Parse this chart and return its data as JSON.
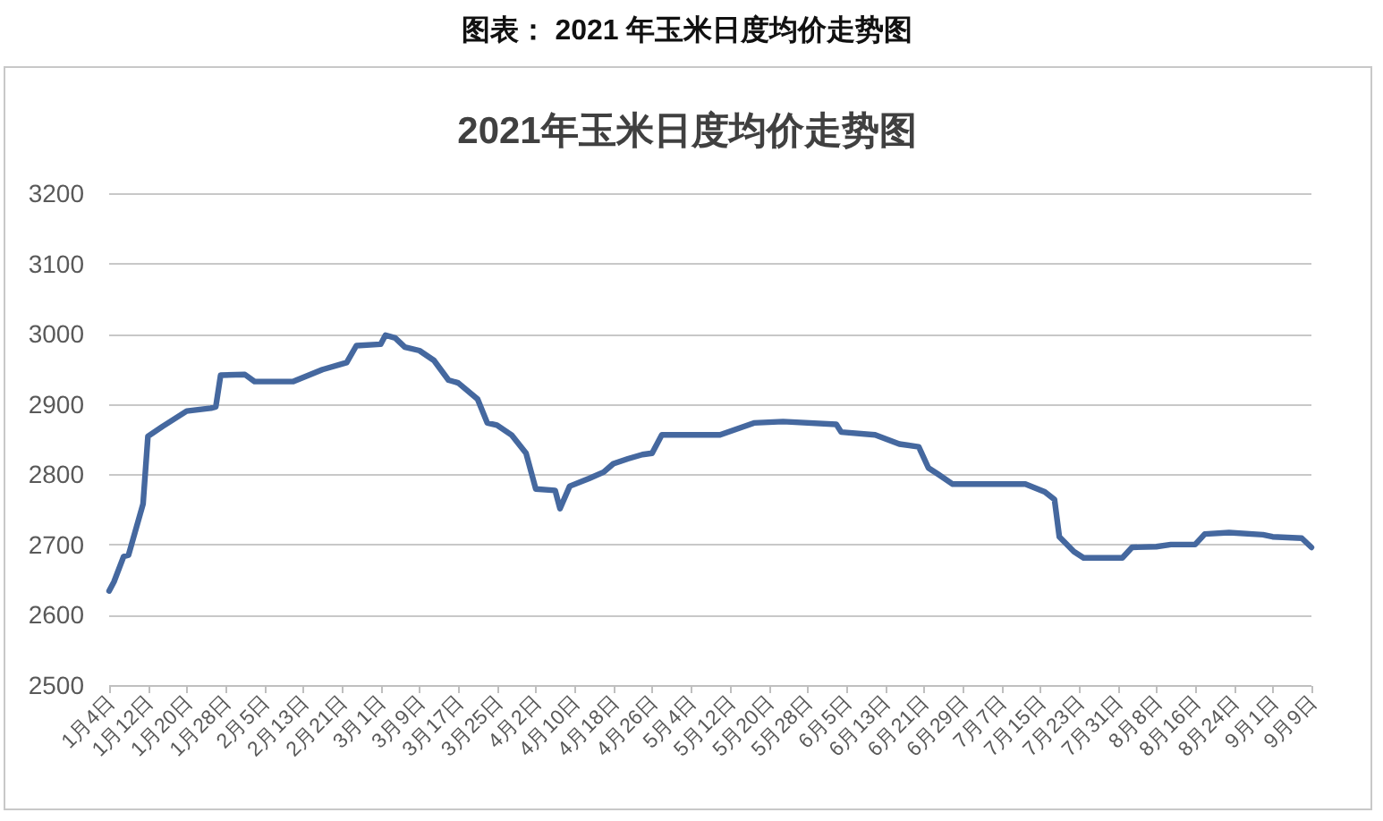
{
  "chart_data": {
    "type": "line",
    "title": "2021年玉米日度均价走势图",
    "annotations": [
      "图表： 2021 年玉米日度均价走势图"
    ],
    "x": [
      "2021-01-04",
      "2021-01-05",
      "2021-01-07",
      "2021-01-08",
      "2021-01-11",
      "2021-01-12",
      "2021-01-15",
      "2021-01-20",
      "2021-01-25",
      "2021-01-26",
      "2021-01-27",
      "2021-02-01",
      "2021-02-03",
      "2021-02-11",
      "2021-02-17",
      "2021-02-22",
      "2021-02-24",
      "2021-03-01",
      "2021-03-02",
      "2021-03-04",
      "2021-03-06",
      "2021-03-09",
      "2021-03-12",
      "2021-03-15",
      "2021-03-17",
      "2021-03-21",
      "2021-03-23",
      "2021-03-25",
      "2021-03-28",
      "2021-03-31",
      "2021-04-02",
      "2021-04-06",
      "2021-04-07",
      "2021-04-09",
      "2021-04-13",
      "2021-04-16",
      "2021-04-18",
      "2021-04-21",
      "2021-04-24",
      "2021-04-26",
      "2021-04-28",
      "2021-05-10",
      "2021-05-17",
      "2021-05-23",
      "2021-06-03",
      "2021-06-04",
      "2021-06-11",
      "2021-06-16",
      "2021-06-20",
      "2021-06-22",
      "2021-06-24",
      "2021-06-27",
      "2021-07-12",
      "2021-07-16",
      "2021-07-18",
      "2021-07-19",
      "2021-07-22",
      "2021-07-24",
      "2021-08-01",
      "2021-08-03",
      "2021-08-08",
      "2021-08-11",
      "2021-08-16",
      "2021-08-18",
      "2021-08-23",
      "2021-08-30",
      "2021-09-01",
      "2021-09-07",
      "2021-09-09"
    ],
    "series": [
      {
        "color": "#45689f",
        "values": [
          2634,
          2647,
          2683,
          2685,
          2758,
          2854,
          2868,
          2890,
          2894,
          2896,
          2941,
          2942,
          2932,
          2932,
          2949,
          2959,
          2983,
          2985,
          2998,
          2994,
          2981,
          2976,
          2962,
          2934,
          2930,
          2907,
          2873,
          2870,
          2856,
          2830,
          2779,
          2777,
          2751,
          2783,
          2794,
          2803,
          2815,
          2822,
          2828,
          2830,
          2856,
          2856,
          2873,
          2875,
          2871,
          2860,
          2856,
          2843,
          2839,
          2809,
          2800,
          2786,
          2786,
          2775,
          2764,
          2711,
          2690,
          2681,
          2681,
          2696,
          2697,
          2700,
          2700,
          2715,
          2717,
          2714,
          2711,
          2709,
          2696
        ]
      }
    ],
    "xlim": [
      "2021-01-04",
      "2021-09-09"
    ],
    "xticks": [
      {
        "value": "2021-01-04",
        "label": "1月4日"
      },
      {
        "value": "2021-01-12",
        "label": "1月12日"
      },
      {
        "value": "2021-01-20",
        "label": "1月20日"
      },
      {
        "value": "2021-01-28",
        "label": "1月28日"
      },
      {
        "value": "2021-02-05",
        "label": "2月5日"
      },
      {
        "value": "2021-02-13",
        "label": "2月13日"
      },
      {
        "value": "2021-02-21",
        "label": "2月21日"
      },
      {
        "value": "2021-03-01",
        "label": "3月1日"
      },
      {
        "value": "2021-03-09",
        "label": "3月9日"
      },
      {
        "value": "2021-03-17",
        "label": "3月17日"
      },
      {
        "value": "2021-03-25",
        "label": "3月25日"
      },
      {
        "value": "2021-04-02",
        "label": "4月2日"
      },
      {
        "value": "2021-04-10",
        "label": "4月10日"
      },
      {
        "value": "2021-04-18",
        "label": "4月18日"
      },
      {
        "value": "2021-04-26",
        "label": "4月26日"
      },
      {
        "value": "2021-05-04",
        "label": "5月4日"
      },
      {
        "value": "2021-05-12",
        "label": "5月12日"
      },
      {
        "value": "2021-05-20",
        "label": "5月20日"
      },
      {
        "value": "2021-05-28",
        "label": "5月28日"
      },
      {
        "value": "2021-06-05",
        "label": "6月5日"
      },
      {
        "value": "2021-06-13",
        "label": "6月13日"
      },
      {
        "value": "2021-06-21",
        "label": "6月21日"
      },
      {
        "value": "2021-06-29",
        "label": "6月29日"
      },
      {
        "value": "2021-07-07",
        "label": "7月7日"
      },
      {
        "value": "2021-07-15",
        "label": "7月15日"
      },
      {
        "value": "2021-07-23",
        "label": "7月23日"
      },
      {
        "value": "2021-07-31",
        "label": "7月31日"
      },
      {
        "value": "2021-08-08",
        "label": "8月8日"
      },
      {
        "value": "2021-08-16",
        "label": "8月16日"
      },
      {
        "value": "2021-08-24",
        "label": "8月24日"
      },
      {
        "value": "2021-09-01",
        "label": "9月1日"
      },
      {
        "value": "2021-09-09",
        "label": "9月9日"
      }
    ],
    "ylim": [
      2500,
      3200
    ],
    "yticks": [
      2500,
      2600,
      2700,
      2800,
      2900,
      3000,
      3100,
      3200
    ],
    "grid": "y"
  }
}
